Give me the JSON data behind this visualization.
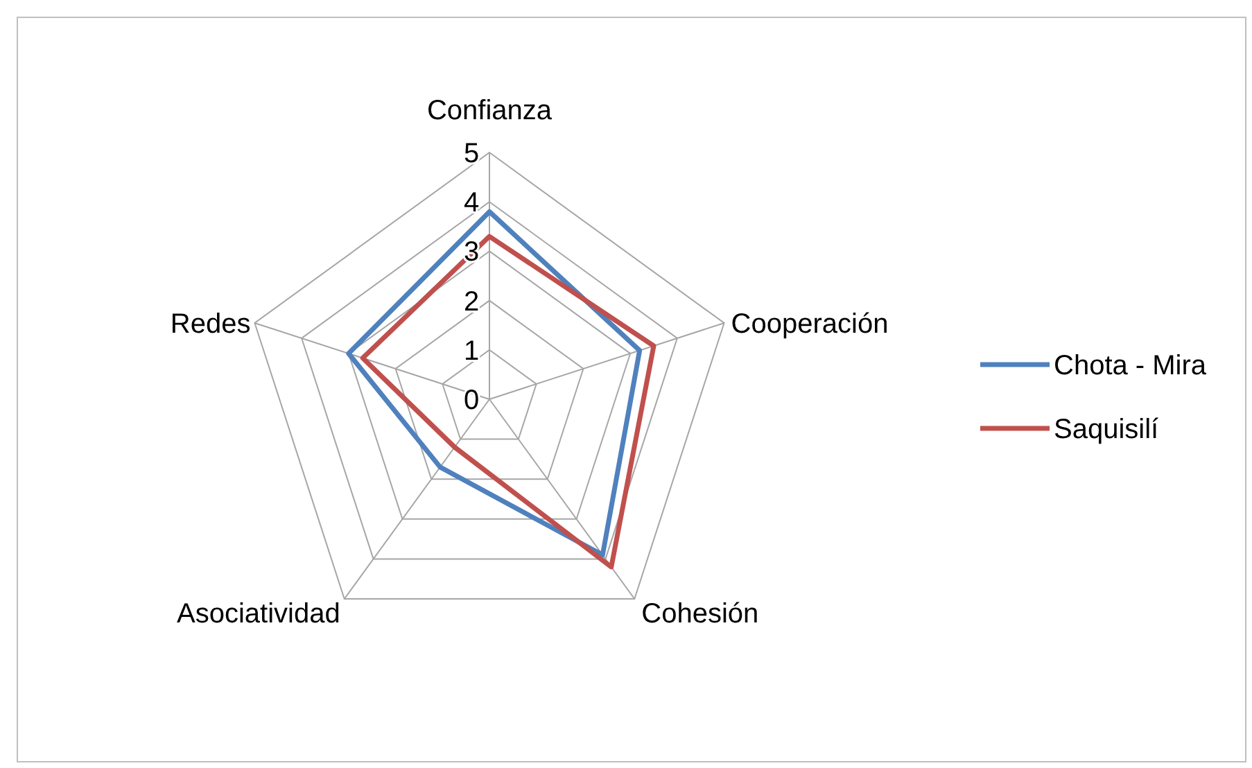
{
  "chart_data": {
    "type": "radar",
    "categories": [
      "Confianza",
      "Cooperación",
      "Cohesión",
      "Asociatividad",
      "Redes"
    ],
    "series": [
      {
        "name": "Chota - Mira",
        "color": "#4f81bd",
        "values": [
          3.8,
          3.2,
          3.9,
          1.7,
          3.0
        ]
      },
      {
        "name": "Saquisilí",
        "color": "#c0504d",
        "values": [
          3.3,
          3.5,
          4.2,
          1.2,
          2.7
        ]
      }
    ],
    "ylim": [
      0,
      5
    ],
    "yticks": [
      0,
      1,
      2,
      3,
      4,
      5
    ],
    "grid": true,
    "legend": "right"
  }
}
